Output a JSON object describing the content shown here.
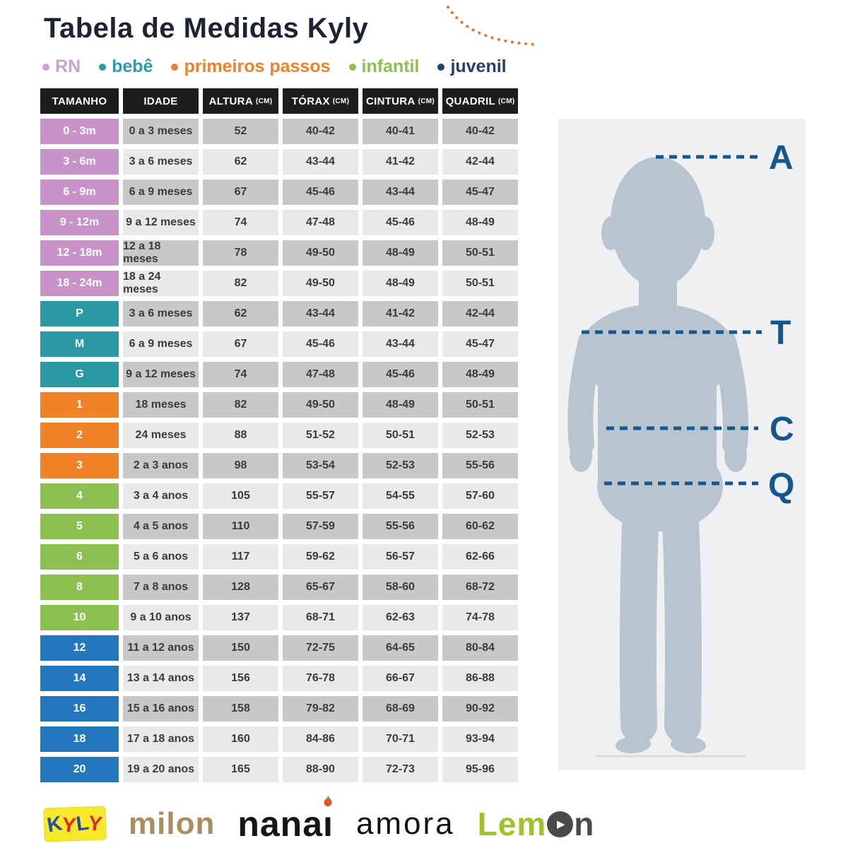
{
  "title": "Tabela de Medidas Kyly",
  "legend": {
    "items": [
      {
        "label": "RN",
        "color": "#c9a0ce"
      },
      {
        "label": "bebê",
        "color": "#2b9aa9"
      },
      {
        "label": "primeiros passos",
        "color": "#f0812a"
      },
      {
        "label": "infantil",
        "color": "#8cc152"
      },
      {
        "label": "juvenil",
        "color": "#26406e"
      }
    ]
  },
  "table": {
    "columns": [
      {
        "label": "TAMANHO",
        "unit": ""
      },
      {
        "label": "IDADE",
        "unit": ""
      },
      {
        "label": "ALTURA",
        "unit": "(CM)"
      },
      {
        "label": "TÓRAX",
        "unit": "(CM)"
      },
      {
        "label": "CINTURA",
        "unit": "(CM)"
      },
      {
        "label": "QUADRIL",
        "unit": "(CM)"
      }
    ],
    "category_colors": {
      "rn_bebe_months": "#c793c9",
      "bebe_pmg": "#2a99a4",
      "primeiros_passos": "#ef8127",
      "infantil": "#8cc152",
      "juvenil": "#2277bd"
    },
    "header_bg": "#1d1d1b",
    "row_shades": {
      "dark": "#c8c8c8",
      "light": "#e9e9e9"
    },
    "rows": [
      {
        "size": "0 - 3m",
        "category": "rn_bebe_months",
        "shade": "dark",
        "idade": "0 a 3 meses",
        "altura": "52",
        "torax": "40-42",
        "cintura": "40-41",
        "quadril": "40-42"
      },
      {
        "size": "3 - 6m",
        "category": "rn_bebe_months",
        "shade": "light",
        "idade": "3 a 6 meses",
        "altura": "62",
        "torax": "43-44",
        "cintura": "41-42",
        "quadril": "42-44"
      },
      {
        "size": "6 - 9m",
        "category": "rn_bebe_months",
        "shade": "dark",
        "idade": "6 a 9 meses",
        "altura": "67",
        "torax": "45-46",
        "cintura": "43-44",
        "quadril": "45-47"
      },
      {
        "size": "9 - 12m",
        "category": "rn_bebe_months",
        "shade": "light",
        "idade": "9 a 12 meses",
        "altura": "74",
        "torax": "47-48",
        "cintura": "45-46",
        "quadril": "48-49"
      },
      {
        "size": "12 - 18m",
        "category": "rn_bebe_months",
        "shade": "dark",
        "idade": "12 a 18 meses",
        "altura": "78",
        "torax": "49-50",
        "cintura": "48-49",
        "quadril": "50-51"
      },
      {
        "size": "18 - 24m",
        "category": "rn_bebe_months",
        "shade": "light",
        "idade": "18 a 24 meses",
        "altura": "82",
        "torax": "49-50",
        "cintura": "48-49",
        "quadril": "50-51"
      },
      {
        "size": "P",
        "category": "bebe_pmg",
        "shade": "dark",
        "idade": "3 a 6 meses",
        "altura": "62",
        "torax": "43-44",
        "cintura": "41-42",
        "quadril": "42-44"
      },
      {
        "size": "M",
        "category": "bebe_pmg",
        "shade": "light",
        "idade": "6 a 9 meses",
        "altura": "67",
        "torax": "45-46",
        "cintura": "43-44",
        "quadril": "45-47"
      },
      {
        "size": "G",
        "category": "bebe_pmg",
        "shade": "dark",
        "idade": "9 a 12 meses",
        "altura": "74",
        "torax": "47-48",
        "cintura": "45-46",
        "quadril": "48-49"
      },
      {
        "size": "1",
        "category": "primeiros_passos",
        "shade": "dark",
        "idade": "18 meses",
        "altura": "82",
        "torax": "49-50",
        "cintura": "48-49",
        "quadril": "50-51"
      },
      {
        "size": "2",
        "category": "primeiros_passos",
        "shade": "light",
        "idade": "24 meses",
        "altura": "88",
        "torax": "51-52",
        "cintura": "50-51",
        "quadril": "52-53"
      },
      {
        "size": "3",
        "category": "primeiros_passos",
        "shade": "dark",
        "idade": "2 a 3 anos",
        "altura": "98",
        "torax": "53-54",
        "cintura": "52-53",
        "quadril": "55-56"
      },
      {
        "size": "4",
        "category": "infantil",
        "shade": "light",
        "idade": "3 a 4 anos",
        "altura": "105",
        "torax": "55-57",
        "cintura": "54-55",
        "quadril": "57-60"
      },
      {
        "size": "5",
        "category": "infantil",
        "shade": "dark",
        "idade": "4 a 5 anos",
        "altura": "110",
        "torax": "57-59",
        "cintura": "55-56",
        "quadril": "60-62"
      },
      {
        "size": "6",
        "category": "infantil",
        "shade": "light",
        "idade": "5 a 6 anos",
        "altura": "117",
        "torax": "59-62",
        "cintura": "56-57",
        "quadril": "62-66"
      },
      {
        "size": "8",
        "category": "infantil",
        "shade": "dark",
        "idade": "7 a 8 anos",
        "altura": "128",
        "torax": "65-67",
        "cintura": "58-60",
        "quadril": "68-72"
      },
      {
        "size": "10",
        "category": "infantil",
        "shade": "light",
        "idade": "9 a 10 anos",
        "altura": "137",
        "torax": "68-71",
        "cintura": "62-63",
        "quadril": "74-78"
      },
      {
        "size": "12",
        "category": "juvenil",
        "shade": "dark",
        "idade": "11 a 12 anos",
        "altura": "150",
        "torax": "72-75",
        "cintura": "64-65",
        "quadril": "80-84"
      },
      {
        "size": "14",
        "category": "juvenil",
        "shade": "light",
        "idade": "13 a 14 anos",
        "altura": "156",
        "torax": "76-78",
        "cintura": "66-67",
        "quadril": "86-88"
      },
      {
        "size": "16",
        "category": "juvenil",
        "shade": "dark",
        "idade": "15 a 16 anos",
        "altura": "158",
        "torax": "79-82",
        "cintura": "68-69",
        "quadril": "90-92"
      },
      {
        "size": "18",
        "category": "juvenil",
        "shade": "light",
        "idade": "17 a 18 anos",
        "altura": "160",
        "torax": "84-86",
        "cintura": "70-71",
        "quadril": "93-94"
      },
      {
        "size": "20",
        "category": "juvenil",
        "shade": "light",
        "idade": "19 a 20 anos",
        "altura": "165",
        "torax": "88-90",
        "cintura": "72-73",
        "quadril": "95-96"
      }
    ]
  },
  "figure": {
    "labels": {
      "a": "A",
      "t": "T",
      "c": "C",
      "q": "Q"
    },
    "panel_color": "#eef0f1",
    "silhouette_color": "#b8c4ce",
    "line_color": "#15568d"
  },
  "decor": {
    "arc_color": "#e8792b"
  },
  "logos": {
    "kyly": {
      "l1": "K",
      "l2": "Y",
      "l3": "L",
      "l4": "Y",
      "badge_color": "#f6e92a",
      "blue": "#1e4fa5",
      "red": "#e12a26"
    },
    "milon": "milon",
    "milon_color": "#a98d5e",
    "nanai_prefix": "nana",
    "nanai_i": "ı",
    "amora": "amora",
    "lemon_prefix": "Lem",
    "lemon_play": "▶",
    "lemon_suffix": "n",
    "lemon_green": "#9dc526",
    "lemon_gray": "#4a4a49"
  }
}
